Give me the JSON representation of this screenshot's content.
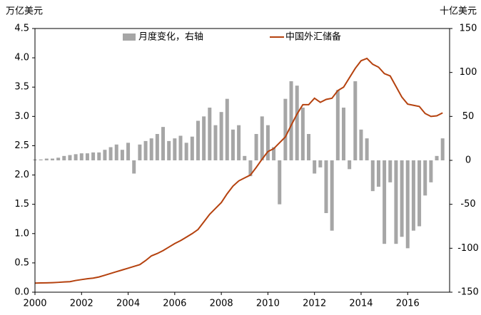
{
  "chart_data": {
    "type": "bar-line",
    "y_label": "万亿美元",
    "y2_label": "十亿美元",
    "x": [
      2000.0,
      2000.25,
      2000.5,
      2000.75,
      2001.0,
      2001.25,
      2001.5,
      2001.75,
      2002.0,
      2002.25,
      2002.5,
      2002.75,
      2003.0,
      2003.25,
      2003.5,
      2003.75,
      2004.0,
      2004.25,
      2004.5,
      2004.75,
      2005.0,
      2005.25,
      2005.5,
      2005.75,
      2006.0,
      2006.25,
      2006.5,
      2006.75,
      2007.0,
      2007.25,
      2007.5,
      2007.75,
      2008.0,
      2008.25,
      2008.5,
      2008.75,
      2009.0,
      2009.25,
      2009.5,
      2009.75,
      2010.0,
      2010.25,
      2010.5,
      2010.75,
      2011.0,
      2011.25,
      2011.5,
      2011.75,
      2012.0,
      2012.25,
      2012.5,
      2012.75,
      2013.0,
      2013.25,
      2013.5,
      2013.75,
      2014.0,
      2014.25,
      2014.5,
      2014.75,
      2015.0,
      2015.25,
      2015.5,
      2015.75,
      2016.0,
      2016.25,
      2016.5,
      2016.75,
      2017.0,
      2017.25,
      2017.5
    ],
    "series": [
      {
        "name": "月度变化，右轴",
        "type": "bar",
        "axis": "y2",
        "color": "#a6a6a6",
        "values": [
          1,
          1,
          2,
          2,
          3,
          5,
          6,
          7,
          8,
          8,
          9,
          9,
          12,
          15,
          18,
          12,
          20,
          -15,
          18,
          22,
          25,
          30,
          38,
          22,
          25,
          28,
          20,
          27,
          45,
          50,
          60,
          40,
          55,
          70,
          35,
          40,
          5,
          -18,
          30,
          50,
          40,
          15,
          -50,
          70,
          90,
          85,
          60,
          30,
          -15,
          -8,
          -60,
          -80,
          80,
          60,
          -10,
          90,
          35,
          25,
          -35,
          -30,
          -95,
          -25,
          -95,
          -87,
          -100,
          -80,
          -75,
          -40,
          -25,
          5,
          25
        ]
      },
      {
        "name": "中国外汇储备",
        "type": "line",
        "color": "#b5420f",
        "values": [
          0.155,
          0.158,
          0.16,
          0.163,
          0.168,
          0.175,
          0.18,
          0.2,
          0.215,
          0.23,
          0.24,
          0.26,
          0.29,
          0.32,
          0.35,
          0.38,
          0.41,
          0.44,
          0.47,
          0.54,
          0.62,
          0.66,
          0.71,
          0.77,
          0.83,
          0.88,
          0.94,
          1.0,
          1.07,
          1.2,
          1.33,
          1.43,
          1.53,
          1.68,
          1.81,
          1.9,
          1.95,
          2.0,
          2.13,
          2.27,
          2.4,
          2.45,
          2.55,
          2.65,
          2.85,
          3.04,
          3.2,
          3.2,
          3.31,
          3.24,
          3.29,
          3.31,
          3.44,
          3.5,
          3.66,
          3.82,
          3.95,
          3.99,
          3.89,
          3.84,
          3.73,
          3.69,
          3.51,
          3.33,
          3.21,
          3.19,
          3.17,
          3.05,
          3.0,
          3.01,
          3.06
        ]
      }
    ],
    "xlim": [
      2000,
      2017.8
    ],
    "xticks": [
      2000,
      2002,
      2004,
      2006,
      2008,
      2010,
      2012,
      2014,
      2016
    ],
    "ylim": [
      0,
      4.5
    ],
    "yticks": [
      {
        "value": 0,
        "label": "0.0"
      },
      0.5,
      {
        "value": 1,
        "label": "1.0"
      },
      1.5,
      {
        "value": 2,
        "label": "2.0"
      },
      2.5,
      {
        "value": 3,
        "label": "3.0"
      },
      3.5,
      {
        "value": 4,
        "label": "4.0"
      },
      4.5
    ],
    "y2lim": [
      -150,
      150
    ],
    "y2ticks": [
      -150,
      -100,
      -50,
      0,
      50,
      100,
      150
    ]
  }
}
